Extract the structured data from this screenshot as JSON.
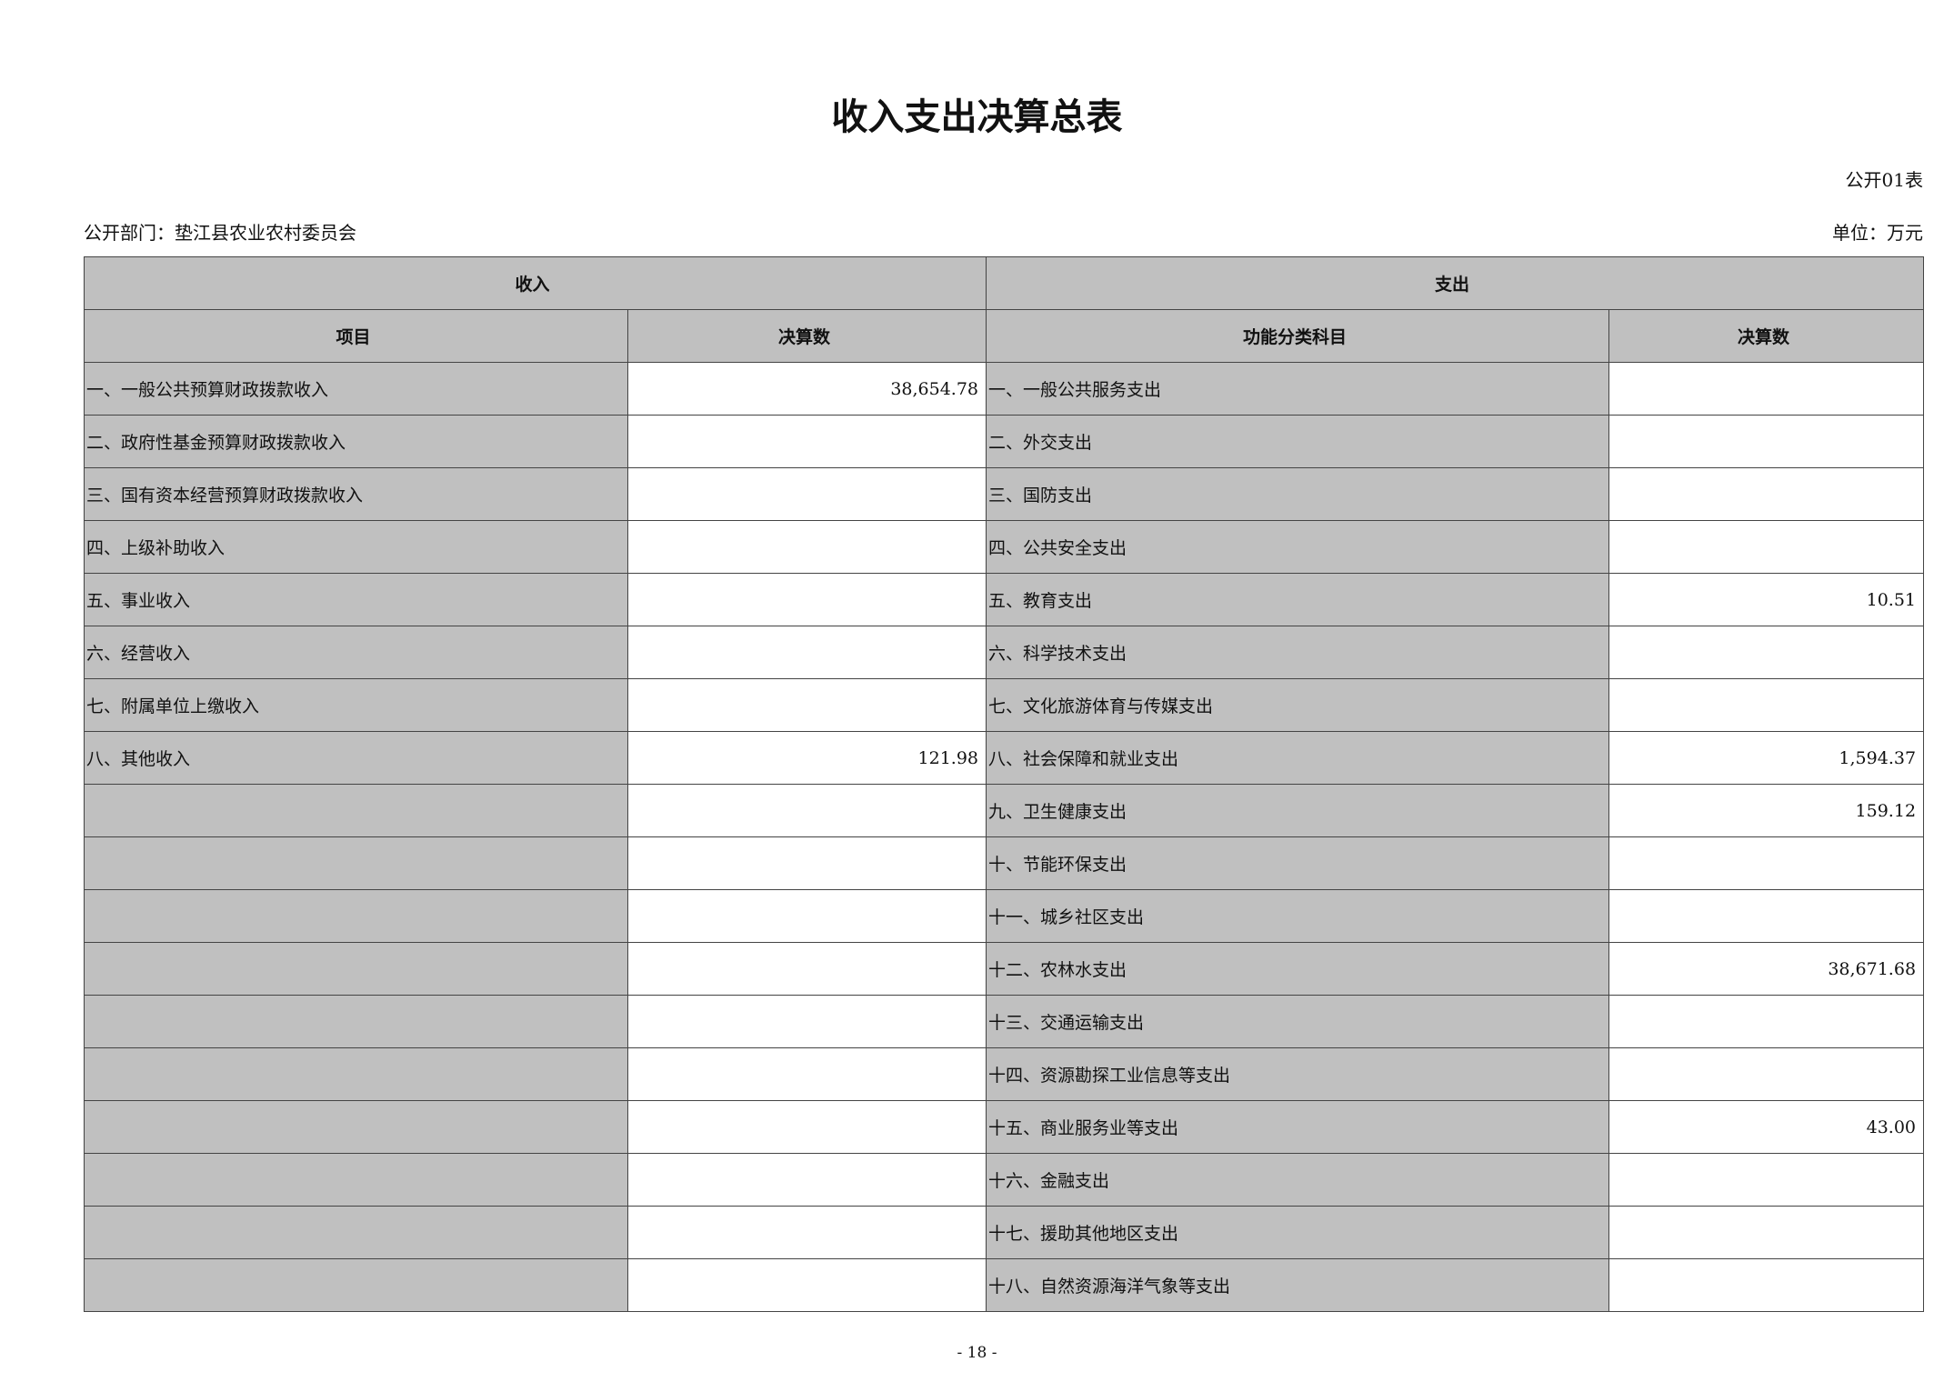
{
  "title": "收入支出决算总表",
  "table_no": "公开01表",
  "department": "公开部门：垫江县农业农村委员会",
  "unit": "单位：万元",
  "headers": {
    "income": "收入",
    "expense": "支出",
    "income_item": "项目",
    "income_amount": "决算数",
    "expense_item": "功能分类科目",
    "expense_amount": "决算数"
  },
  "rows": [
    {
      "income_item": "一、一般公共预算财政拨款收入",
      "income_amount": "38,654.78",
      "expense_item": "一、一般公共服务支出",
      "expense_amount": ""
    },
    {
      "income_item": "二、政府性基金预算财政拨款收入",
      "income_amount": "",
      "expense_item": "二、外交支出",
      "expense_amount": ""
    },
    {
      "income_item": "三、国有资本经营预算财政拨款收入",
      "income_amount": "",
      "expense_item": "三、国防支出",
      "expense_amount": ""
    },
    {
      "income_item": "四、上级补助收入",
      "income_amount": "",
      "expense_item": "四、公共安全支出",
      "expense_amount": ""
    },
    {
      "income_item": "五、事业收入",
      "income_amount": "",
      "expense_item": "五、教育支出",
      "expense_amount": "10.51"
    },
    {
      "income_item": "六、经营收入",
      "income_amount": "",
      "expense_item": "六、科学技术支出",
      "expense_amount": ""
    },
    {
      "income_item": "七、附属单位上缴收入",
      "income_amount": "",
      "expense_item": "七、文化旅游体育与传媒支出",
      "expense_amount": ""
    },
    {
      "income_item": "八、其他收入",
      "income_amount": "121.98",
      "expense_item": "八、社会保障和就业支出",
      "expense_amount": "1,594.37"
    },
    {
      "income_item": "",
      "income_amount": "",
      "expense_item": "九、卫生健康支出",
      "expense_amount": "159.12"
    },
    {
      "income_item": "",
      "income_amount": "",
      "expense_item": "十、节能环保支出",
      "expense_amount": ""
    },
    {
      "income_item": "",
      "income_amount": "",
      "expense_item": "十一、城乡社区支出",
      "expense_amount": ""
    },
    {
      "income_item": "",
      "income_amount": "",
      "expense_item": "十二、农林水支出",
      "expense_amount": "38,671.68"
    },
    {
      "income_item": "",
      "income_amount": "",
      "expense_item": "十三、交通运输支出",
      "expense_amount": ""
    },
    {
      "income_item": "",
      "income_amount": "",
      "expense_item": "十四、资源勘探工业信息等支出",
      "expense_amount": ""
    },
    {
      "income_item": "",
      "income_amount": "",
      "expense_item": "十五、商业服务业等支出",
      "expense_amount": "43.00"
    },
    {
      "income_item": "",
      "income_amount": "",
      "expense_item": "十六、金融支出",
      "expense_amount": ""
    },
    {
      "income_item": "",
      "income_amount": "",
      "expense_item": "十七、援助其他地区支出",
      "expense_amount": ""
    },
    {
      "income_item": "",
      "income_amount": "",
      "expense_item": "十八、自然资源海洋气象等支出",
      "expense_amount": ""
    }
  ],
  "page_number": "- 18 -"
}
